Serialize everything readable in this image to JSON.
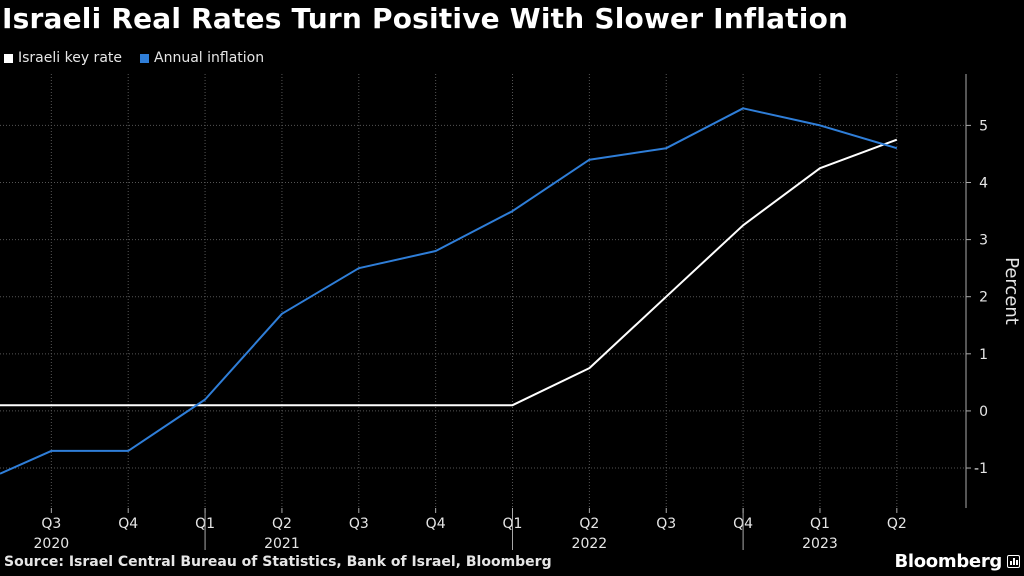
{
  "title": "Israeli Real Rates Turn Positive With Slower Inflation",
  "source": "Source: Israel Central Bureau of Statistics, Bank of Israel, Bloomberg",
  "brand": "Bloomberg",
  "brand_icon": "bar-chart-icon",
  "colors": {
    "background": "#000000",
    "key_rate": "#ffffff",
    "inflation": "#2f7ed8",
    "grid": "#555555"
  },
  "chart_data": {
    "type": "line",
    "title": "Israeli Real Rates Turn Positive With Slower Inflation",
    "ylabel": "Percent",
    "ylim": [
      -1.7,
      5.9
    ],
    "xlim": [
      2020.333,
      2023.475
    ],
    "y_ticks": [
      -1,
      0,
      1,
      2,
      3,
      4,
      5
    ],
    "x_ticks": [
      {
        "x": 2020.5,
        "label": "Q3"
      },
      {
        "x": 2020.75,
        "label": "Q4"
      },
      {
        "x": 2021.0,
        "label": "Q1"
      },
      {
        "x": 2021.25,
        "label": "Q2"
      },
      {
        "x": 2021.5,
        "label": "Q3"
      },
      {
        "x": 2021.75,
        "label": "Q4"
      },
      {
        "x": 2022.0,
        "label": "Q1"
      },
      {
        "x": 2022.25,
        "label": "Q2"
      },
      {
        "x": 2022.5,
        "label": "Q3"
      },
      {
        "x": 2022.75,
        "label": "Q4"
      },
      {
        "x": 2023.0,
        "label": "Q1"
      },
      {
        "x": 2023.25,
        "label": "Q2"
      }
    ],
    "year_labels": [
      {
        "x": 2020.5,
        "label": "2020"
      },
      {
        "x": 2021.25,
        "label": "2021"
      },
      {
        "x": 2022.25,
        "label": "2022"
      },
      {
        "x": 2023.0,
        "label": "2023"
      }
    ],
    "year_dividers": [
      2021.0,
      2022.0,
      2022.75
    ],
    "legend_position": "top-left",
    "grid": true,
    "series": [
      {
        "name": "Israeli key rate",
        "color": "#ffffff",
        "points": [
          [
            2020.333,
            0.1
          ],
          [
            2022.0,
            0.1
          ],
          [
            2022.25,
            0.75
          ],
          [
            2022.5,
            2.0
          ],
          [
            2022.75,
            3.25
          ],
          [
            2023.0,
            4.25
          ],
          [
            2023.25,
            4.75
          ]
        ]
      },
      {
        "name": "Annual inflation",
        "color": "#2f7ed8",
        "points": [
          [
            2020.333,
            -1.1
          ],
          [
            2020.5,
            -0.7
          ],
          [
            2020.75,
            -0.7
          ],
          [
            2021.0,
            0.2
          ],
          [
            2021.25,
            1.7
          ],
          [
            2021.5,
            2.5
          ],
          [
            2021.75,
            2.8
          ],
          [
            2022.0,
            3.5
          ],
          [
            2022.25,
            4.4
          ],
          [
            2022.5,
            4.6
          ],
          [
            2022.75,
            5.3
          ],
          [
            2023.0,
            5.0
          ],
          [
            2023.25,
            4.6
          ]
        ]
      }
    ]
  }
}
